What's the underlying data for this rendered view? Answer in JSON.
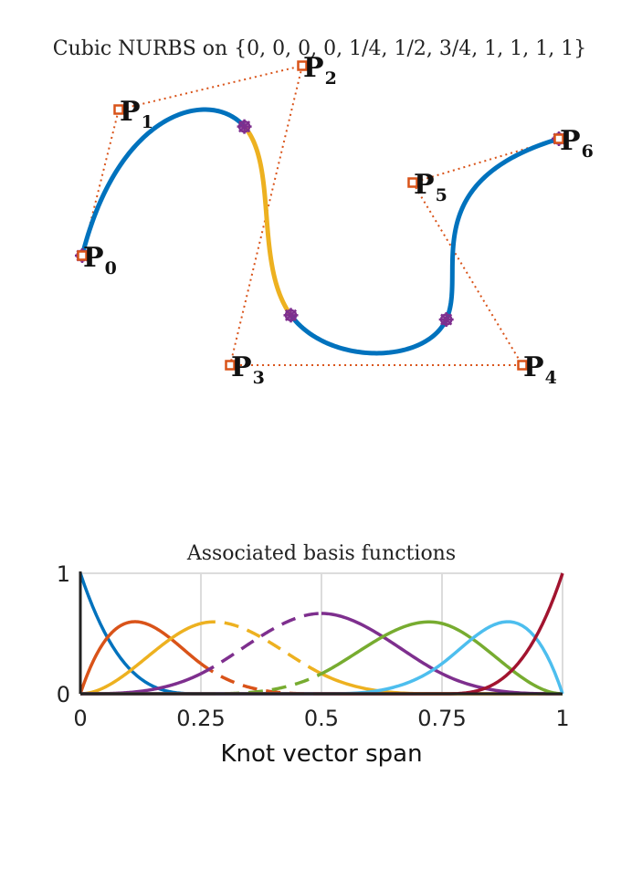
{
  "curve_panel": {
    "title": "Cubic NURBS on {0, 0, 0, 0, 1/4, 1/2, 3/4, 1, 1, 1, 1}",
    "control_points": [
      {
        "label": "P",
        "sub": "0"
      },
      {
        "label": "P",
        "sub": "1"
      },
      {
        "label": "P",
        "sub": "2"
      },
      {
        "label": "P",
        "sub": "3"
      },
      {
        "label": "P",
        "sub": "4"
      },
      {
        "label": "P",
        "sub": "5"
      },
      {
        "label": "P",
        "sub": "6"
      }
    ],
    "colors": {
      "curve": "#0072BD",
      "highlight": "#EDB120",
      "polygon": "#D95319",
      "knot_marker": "#7E2F8E"
    }
  },
  "chart_data": {
    "type": "line",
    "title": "Associated basis functions",
    "xlabel": "Knot vector span",
    "ylabel": "",
    "xlim": [
      0,
      1
    ],
    "ylim": [
      0,
      1
    ],
    "xticks": [
      "0",
      "0.25",
      "0.5",
      "0.75",
      "1"
    ],
    "yticks": [
      "0",
      "1"
    ],
    "grid": true,
    "knots": [
      0,
      0,
      0,
      0,
      0.25,
      0.5,
      0.75,
      1,
      1,
      1,
      1
    ],
    "series": [
      {
        "color": "#0072BD",
        "dashed_interval": null
      },
      {
        "color": "#D95319",
        "dashed_interval": [
          0.25,
          0.5
        ]
      },
      {
        "color": "#EDB120",
        "dashed_interval": [
          0.25,
          0.5
        ]
      },
      {
        "color": "#7E2F8E",
        "dashed_interval": [
          0.25,
          0.5
        ]
      },
      {
        "color": "#77AC30",
        "dashed_interval": [
          0.25,
          0.5
        ]
      },
      {
        "color": "#4DBEEE",
        "dashed_interval": null
      },
      {
        "color": "#A2142F",
        "dashed_interval": null
      }
    ]
  }
}
